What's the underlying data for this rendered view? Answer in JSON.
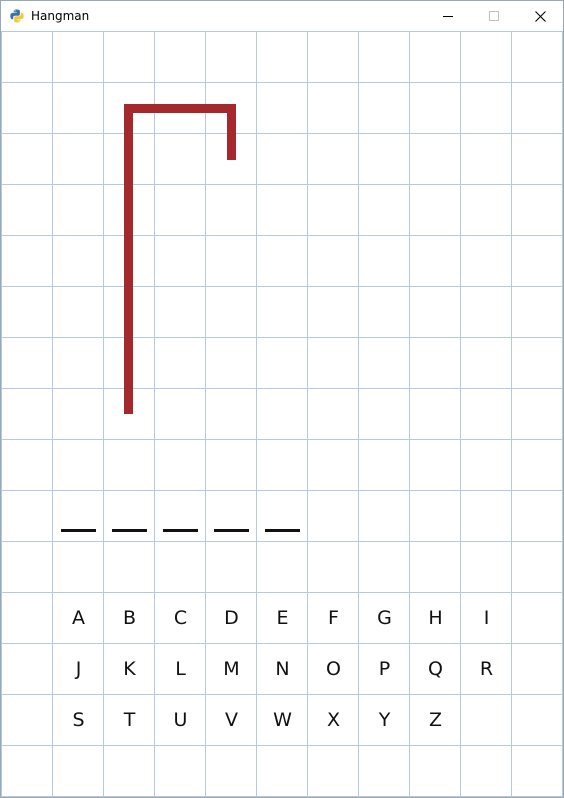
{
  "window": {
    "title": "Hangman",
    "icon": "python-icon",
    "controls": [
      "minimize-icon",
      "maximize-icon",
      "close-icon"
    ]
  },
  "game": {
    "word_length": 5,
    "gallows_color": "#a5282c",
    "grid_color": "#b7c9dd",
    "letters_row1": [
      "A",
      "B",
      "C",
      "D",
      "E",
      "F",
      "G",
      "H",
      "I"
    ],
    "letters_row2": [
      "J",
      "K",
      "L",
      "M",
      "N",
      "O",
      "P",
      "Q",
      "R"
    ],
    "letters_row3": [
      "S",
      "T",
      "U",
      "V",
      "W",
      "X",
      "Y",
      "Z"
    ]
  }
}
